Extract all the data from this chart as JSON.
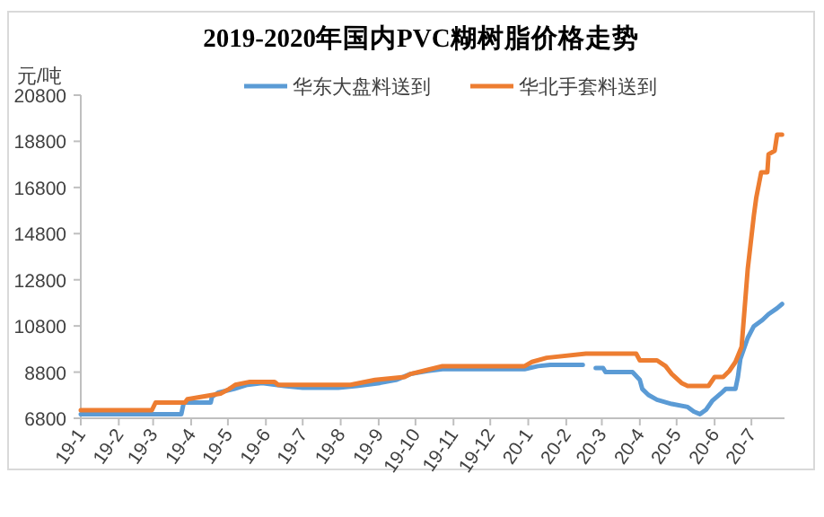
{
  "chart_data": {
    "type": "line",
    "title": "2019-2020年国内PVC糊树脂价格走势",
    "ylabel": "元/吨",
    "legend": "top",
    "xlim": [
      "2019-01-01",
      "2020-07-28"
    ],
    "xticks": [
      {
        "value": "2019-01-01",
        "label": "19-1"
      },
      {
        "value": "2019-02-01",
        "label": "19-2"
      },
      {
        "value": "2019-03-01",
        "label": "19-3"
      },
      {
        "value": "2019-04-01",
        "label": "19-4"
      },
      {
        "value": "2019-05-01",
        "label": "19-5"
      },
      {
        "value": "2019-06-01",
        "label": "19-6"
      },
      {
        "value": "2019-07-01",
        "label": "19-7"
      },
      {
        "value": "2019-08-01",
        "label": "19-8"
      },
      {
        "value": "2019-09-01",
        "label": "19-9"
      },
      {
        "value": "2019-10-01",
        "label": "19-10"
      },
      {
        "value": "2019-11-01",
        "label": "19-11"
      },
      {
        "value": "2019-12-01",
        "label": "19-12"
      },
      {
        "value": "2020-01-01",
        "label": "20-1"
      },
      {
        "value": "2020-02-01",
        "label": "20-2"
      },
      {
        "value": "2020-03-01",
        "label": "20-3"
      },
      {
        "value": "2020-04-01",
        "label": "20-4"
      },
      {
        "value": "2020-05-01",
        "label": "20-5"
      },
      {
        "value": "2020-06-01",
        "label": "20-6"
      },
      {
        "value": "2020-07-01",
        "label": "20-7"
      }
    ],
    "ylim": [
      6800,
      20800
    ],
    "yticks": [
      6800,
      8800,
      10800,
      12800,
      14800,
      16800,
      18800,
      20800
    ],
    "series": [
      {
        "name": "华东大盘料送到",
        "color": "#5b9bd5",
        "x": [
          "2019-01-01",
          "2019-03-24",
          "2019-03-26",
          "2019-04-17",
          "2019-04-18",
          "2019-04-23",
          "2019-05-06",
          "2019-05-17",
          "2019-05-29",
          "2019-06-16",
          "2019-07-01",
          "2019-07-30",
          "2019-08-14",
          "2019-09-02",
          "2019-09-15",
          "2019-09-27",
          "2019-10-11",
          "2019-10-23",
          "2019-12-29",
          "2020-01-09",
          "2020-01-19",
          "2020-02-13",
          "2020-02-20",
          "2020-02-25",
          "2020-03-02",
          "2020-03-04",
          "2020-03-26",
          "2020-04-01",
          "2020-04-03",
          "2020-04-08",
          "2020-04-15",
          "2020-04-27",
          "2020-05-10",
          "2020-05-15",
          "2020-05-20",
          "2020-05-25",
          "2020-05-30",
          "2020-06-06",
          "2020-06-10",
          "2020-06-18",
          "2020-06-20",
          "2020-06-22",
          "2020-06-28",
          "2020-07-03",
          "2020-07-10",
          "2020-07-15",
          "2020-07-22",
          "2020-07-26"
        ],
        "values": [
          6980,
          6980,
          7480,
          7480,
          7730,
          7910,
          8070,
          8250,
          8330,
          8200,
          8120,
          8120,
          8200,
          8330,
          8460,
          8720,
          8850,
          8930,
          8930,
          9060,
          9110,
          9110,
          null,
          8980,
          8980,
          8800,
          8800,
          8460,
          8070,
          7810,
          7600,
          7420,
          7290,
          7090,
          6980,
          7170,
          7550,
          7870,
          8070,
          8070,
          8590,
          9370,
          10280,
          10790,
          11060,
          11310,
          11570,
          11750
        ]
      },
      {
        "name": "华北手套料送到",
        "color": "#ed7d31",
        "x": [
          "2019-01-01",
          "2019-02-28",
          "2019-03-03",
          "2019-03-27",
          "2019-03-29",
          "2019-04-25",
          "2019-05-02",
          "2019-05-07",
          "2019-05-19",
          "2019-06-08",
          "2019-06-11",
          "2019-08-09",
          "2019-08-29",
          "2019-09-22",
          "2019-09-27",
          "2019-10-11",
          "2019-10-23",
          "2019-12-29",
          "2020-01-04",
          "2020-01-16",
          "2020-02-17",
          "2020-03-29",
          "2020-04-01",
          "2020-04-15",
          "2020-04-22",
          "2020-04-27",
          "2020-05-05",
          "2020-05-10",
          "2020-05-27",
          "2020-06-01",
          "2020-06-08",
          "2020-06-13",
          "2020-06-18",
          "2020-06-23",
          "2020-06-28",
          "2020-07-03",
          "2020-07-05",
          "2020-07-09",
          "2020-07-14",
          "2020-07-15",
          "2020-07-20",
          "2020-07-22",
          "2020-07-26"
        ],
        "values": [
          7150,
          7150,
          7480,
          7480,
          7630,
          7870,
          8070,
          8250,
          8380,
          8380,
          8250,
          8250,
          8460,
          8590,
          8720,
          8900,
          9060,
          9060,
          9240,
          9420,
          9600,
          9600,
          9310,
          9310,
          9060,
          8720,
          8330,
          8200,
          8200,
          8590,
          8590,
          8850,
          9240,
          9890,
          13260,
          15590,
          16370,
          17460,
          17460,
          18240,
          18390,
          19090,
          19090
        ]
      }
    ]
  }
}
